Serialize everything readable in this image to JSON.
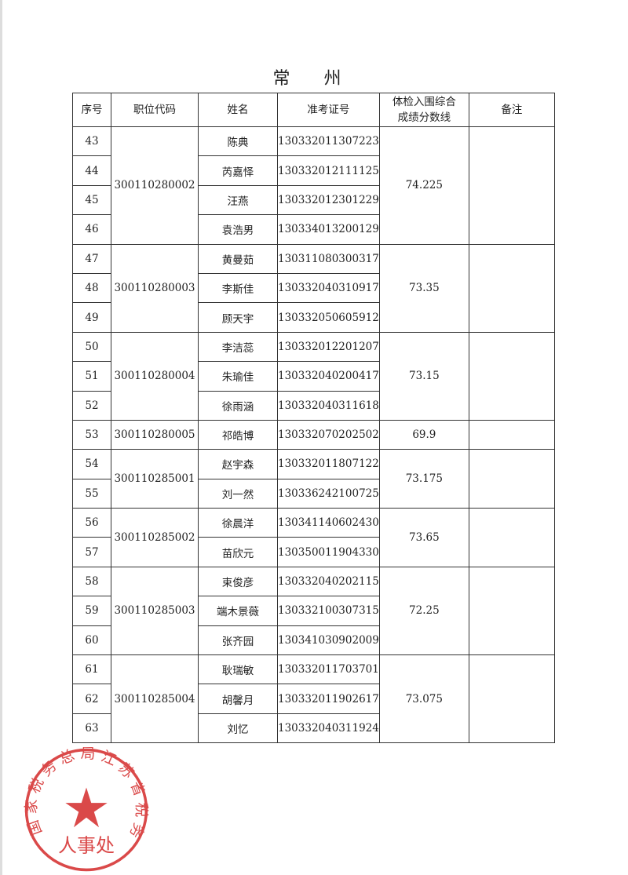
{
  "title": "常 州",
  "headers": [
    "序号",
    "职位代码",
    "姓名",
    "准考证号",
    "体检入围综合成绩分数线",
    "备注"
  ],
  "header_lines": {
    "score": [
      "体检入围综合",
      "成绩分数线"
    ]
  },
  "groups": [
    {
      "code": "300110280002",
      "score": "74.225",
      "remark": "",
      "rows": [
        {
          "no": "43",
          "name": "陈典",
          "id": "130332011307223"
        },
        {
          "no": "44",
          "name": "芮嘉怿",
          "id": "130332012111125"
        },
        {
          "no": "45",
          "name": "汪燕",
          "id": "130332012301229"
        },
        {
          "no": "46",
          "name": "袁浩男",
          "id": "130334013200129"
        }
      ]
    },
    {
      "code": "300110280003",
      "score": "73.35",
      "remark": "",
      "rows": [
        {
          "no": "47",
          "name": "黄曼茹",
          "id": "130311080300317"
        },
        {
          "no": "48",
          "name": "李斯佳",
          "id": "130332040310917"
        },
        {
          "no": "49",
          "name": "顾天宇",
          "id": "130332050605912"
        }
      ]
    },
    {
      "code": "300110280004",
      "score": "73.15",
      "remark": "",
      "rows": [
        {
          "no": "50",
          "name": "李洁蕊",
          "id": "130332012201207"
        },
        {
          "no": "51",
          "name": "朱瑜佳",
          "id": "130332040200417"
        },
        {
          "no": "52",
          "name": "徐雨涵",
          "id": "130332040311618"
        }
      ]
    },
    {
      "code": "300110280005",
      "score": "69.9",
      "remark": "",
      "rows": [
        {
          "no": "53",
          "name": "祁皓博",
          "id": "130332070202502"
        }
      ]
    },
    {
      "code": "300110285001",
      "score": "73.175",
      "remark": "",
      "rows": [
        {
          "no": "54",
          "name": "赵宇森",
          "id": "130332011807122"
        },
        {
          "no": "55",
          "name": "刘一然",
          "id": "130336242100725"
        }
      ]
    },
    {
      "code": "300110285002",
      "score": "73.65",
      "remark": "",
      "rows": [
        {
          "no": "56",
          "name": "徐晨洋",
          "id": "130341140602430"
        },
        {
          "no": "57",
          "name": "苗欣元",
          "id": "130350011904330"
        }
      ]
    },
    {
      "code": "300110285003",
      "score": "72.25",
      "remark": "",
      "rows": [
        {
          "no": "58",
          "name": "束俊彦",
          "id": "130332040202115"
        },
        {
          "no": "59",
          "name": "端木景薇",
          "id": "130332100307315"
        },
        {
          "no": "60",
          "name": "张齐园",
          "id": "130341030902009"
        }
      ]
    },
    {
      "code": "300110285004",
      "score": "73.075",
      "remark": "",
      "rows": [
        {
          "no": "61",
          "name": "耿瑞敏",
          "id": "130332011703701"
        },
        {
          "no": "62",
          "name": "胡馨月",
          "id": "130332011902617"
        },
        {
          "no": "63",
          "name": "刘忆",
          "id": "130332040311924"
        }
      ]
    }
  ],
  "stamp": {
    "ring_text": "国家税务总局江苏省税务局",
    "center_text": "人事处",
    "color": "#d42a2a"
  }
}
